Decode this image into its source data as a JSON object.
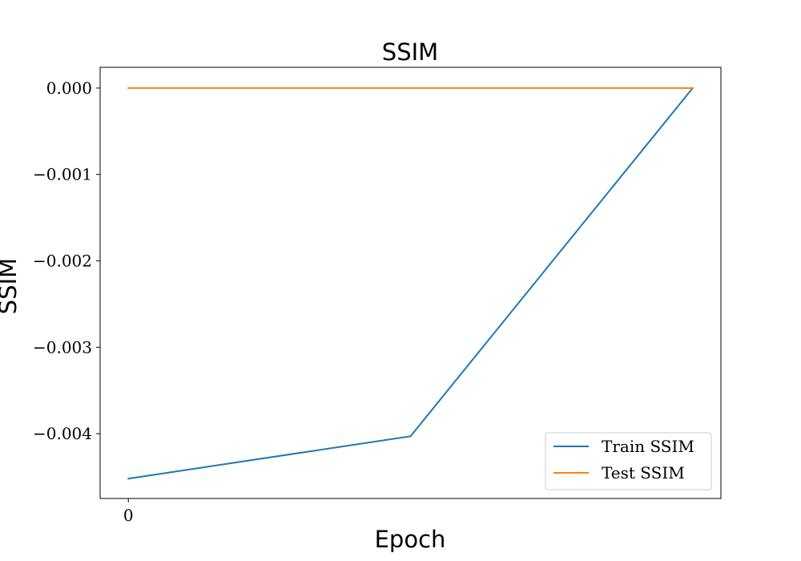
{
  "chart_data": {
    "type": "line",
    "title": "SSIM",
    "xlabel": "Epoch",
    "ylabel": "SSIM",
    "x": [
      0,
      1,
      2
    ],
    "x_ticks": [
      0
    ],
    "x_tick_labels": [
      "0"
    ],
    "xlim": [
      -0.1,
      2.1
    ],
    "ylim": [
      -0.00475,
      0.00024
    ],
    "y_ticks": [
      0.0,
      -0.001,
      -0.002,
      -0.003,
      -0.004
    ],
    "y_tick_labels": [
      "0.000",
      "−0.001",
      "−0.002",
      "−0.003",
      "−0.004"
    ],
    "grid": false,
    "legend_position": "lower-right",
    "series": [
      {
        "name": "Train SSIM",
        "color": "#1f77b4",
        "values": [
          -0.00452,
          -0.00403,
          0.0
        ]
      },
      {
        "name": "Test SSIM",
        "color": "#ff7f0e",
        "values": [
          0.0,
          0.0,
          0.0
        ]
      }
    ]
  }
}
